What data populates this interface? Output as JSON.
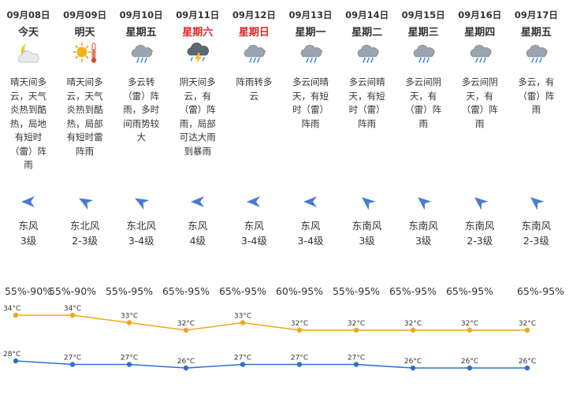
{
  "days": [
    {
      "date": "09月08日",
      "day": "今天",
      "weekend": false,
      "icon": "moon-cloud-icon",
      "desc": "晴天间多云，天气炎热到酷热，局地有短时（雷）阵雨",
      "wind_dir": "东风",
      "wind_level": "3级",
      "wind_icon": "wind-arrow-east-icon",
      "humidity": "55%-90%"
    },
    {
      "date": "09月09日",
      "day": "明天",
      "weekend": false,
      "icon": "sun-thermometer-icon",
      "desc": "晴天间多云，天气炎热到酷热，局部有短时雷阵雨",
      "wind_dir": "东北风",
      "wind_level": "2-3级",
      "wind_icon": "wind-arrow-northeast-icon",
      "humidity": "55%-90%"
    },
    {
      "date": "09月10日",
      "day": "星期五",
      "weekend": false,
      "icon": "cloud-rain-icon",
      "desc": "多云转（雷）阵雨，多时间雨势较大",
      "wind_dir": "东北风",
      "wind_level": "3-4级",
      "wind_icon": "wind-arrow-northeast-icon",
      "humidity": "55%-95%"
    },
    {
      "date": "09月11日",
      "day": "星期六",
      "weekend": true,
      "icon": "thunderstorm-icon",
      "desc": "阴天间多云，有（雷）阵雨，局部可达大雨到暴雨",
      "wind_dir": "东风",
      "wind_level": "4级",
      "wind_icon": "wind-arrow-east-icon",
      "humidity": "65%-95%"
    },
    {
      "date": "09月12日",
      "day": "星期日",
      "weekend": true,
      "icon": "cloud-rain-icon",
      "desc": "阵雨转多云",
      "wind_dir": "东风",
      "wind_level": "3-4级",
      "wind_icon": "wind-arrow-east-icon",
      "humidity": "65%-95%"
    },
    {
      "date": "09月13日",
      "day": "星期一",
      "weekend": false,
      "icon": "cloud-rain-icon",
      "desc": "多云间晴天，有短时（雷）阵雨",
      "wind_dir": "东风",
      "wind_level": "3-4级",
      "wind_icon": "wind-arrow-east-icon",
      "humidity": "60%-95%"
    },
    {
      "date": "09月14日",
      "day": "星期二",
      "weekend": false,
      "icon": "cloud-rain-icon",
      "desc": "多云间晴天，有短时（雷）阵雨",
      "wind_dir": "东南风",
      "wind_level": "3级",
      "wind_icon": "wind-arrow-southeast-icon",
      "humidity": "55%-95%"
    },
    {
      "date": "09月15日",
      "day": "星期三",
      "weekend": false,
      "icon": "cloud-rain-icon",
      "desc": "多云间阴天，有（雷）阵雨",
      "wind_dir": "东南风",
      "wind_level": "3级",
      "wind_icon": "wind-arrow-southeast-icon",
      "humidity": "65%-95%"
    },
    {
      "date": "09月16日",
      "day": "星期四",
      "weekend": false,
      "icon": "cloud-rain-icon",
      "desc": "多云间阴天，有（雷）阵雨",
      "wind_dir": "东南风",
      "wind_level": "2-3级",
      "wind_icon": "wind-arrow-southeast-icon",
      "humidity": "65%-95%"
    },
    {
      "date": "09月17日",
      "day": "星期五",
      "weekend": false,
      "icon": "cloud-rain-icon",
      "desc": "多云，有（雷）阵雨",
      "wind_dir": "东南风",
      "wind_level": "2-3级",
      "wind_icon": "wind-arrow-southeast-icon",
      "humidity": "65%-95%"
    }
  ],
  "colors": {
    "weekend": "#e02424",
    "high_line": "#f0a81a",
    "low_line": "#2f6fd0",
    "wind_arrow": "#4a7bd0"
  },
  "chart_data": {
    "type": "line",
    "x": [
      "09月08日",
      "09月09日",
      "09月10日",
      "09月11日",
      "09月12日",
      "09月13日",
      "09月14日",
      "09月15日",
      "09月16日",
      "09月17日"
    ],
    "unit": "°C",
    "series": [
      {
        "values": [
          34,
          34,
          33,
          32,
          33,
          32,
          32,
          32,
          32,
          32
        ]
      },
      {
        "values": [
          28,
          27,
          27,
          26,
          27,
          27,
          27,
          26,
          26,
          26
        ]
      }
    ],
    "ylim": [
      25,
      35
    ],
    "grid": false,
    "legend": "none"
  }
}
